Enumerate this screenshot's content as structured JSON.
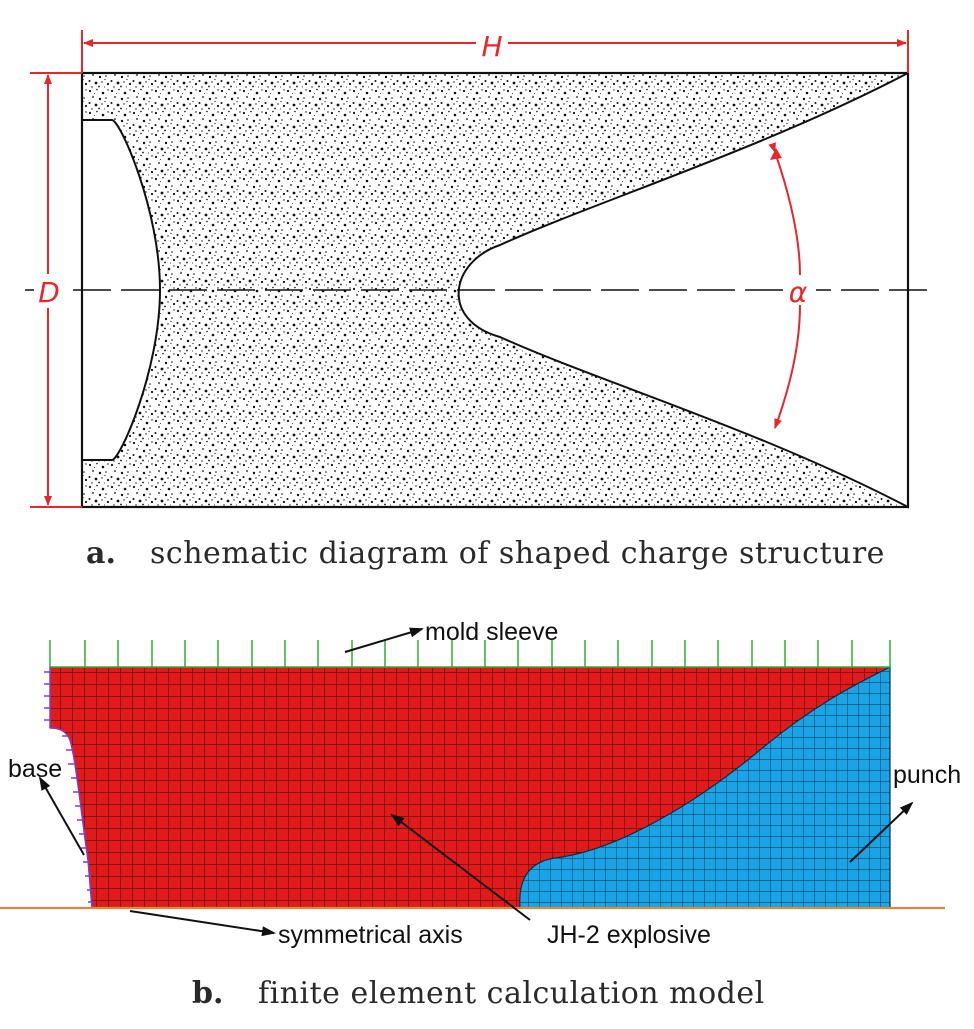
{
  "panel_a": {
    "dim_h": "H",
    "dim_d": "D",
    "dim_alpha": "α",
    "caption_letter": "a.",
    "caption_text": "schematic diagram of shaped charge structure"
  },
  "panel_b": {
    "label_mold_sleeve": "mold sleeve",
    "label_base": "base",
    "label_punch": "punch",
    "label_symmetrical_axis": "symmetrical axis",
    "label_explosive": "JH-2 explosive",
    "caption_letter": "b.",
    "caption_text": "finite element calculation model"
  },
  "colors": {
    "dimension": "#e8262c",
    "explosive": "#e01b1b",
    "punch": "#1aa4e6",
    "sleeve_constraint": "#2fb02f",
    "base_constraint": "#7a3fd0",
    "axis": "#d98a3a"
  }
}
